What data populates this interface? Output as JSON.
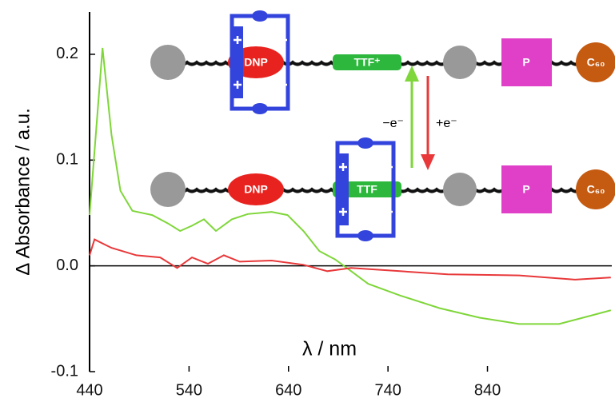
{
  "chart_data": {
    "type": "line",
    "xlabel": "λ / nm",
    "ylabel": "Δ Absorbance / a.u.",
    "xlim": [
      440,
      965
    ],
    "ylim": [
      -0.1,
      0.24
    ],
    "xticks": [
      440,
      540,
      640,
      740,
      840
    ],
    "yticks": [
      {
        "value": -0.1,
        "label": "-0.1"
      },
      {
        "value": 0,
        "label": "0.0"
      },
      0.1,
      0.2
    ],
    "series": [
      {
        "color": "#7fd63a",
        "x": [
          440,
          453,
          462,
          471,
          483,
          503,
          519,
          531,
          543,
          555,
          567,
          583,
          599,
          623,
          639,
          655,
          671,
          687,
          703,
          720,
          752,
          792,
          832,
          872,
          912,
          944,
          964
        ],
        "values": [
          0.048,
          0.206,
          0.124,
          0.071,
          0.052,
          0.048,
          0.04,
          0.033,
          0.038,
          0.044,
          0.033,
          0.044,
          0.049,
          0.051,
          0.048,
          0.033,
          0.014,
          0.006,
          -0.005,
          -0.017,
          -0.028,
          -0.04,
          -0.049,
          -0.055,
          -0.055,
          -0.047,
          -0.042
        ]
      },
      {
        "color": "#e8383a",
        "x": [
          440,
          445,
          462,
          487,
          511,
          528,
          543,
          559,
          575,
          591,
          623,
          655,
          679,
          703,
          752,
          800,
          872,
          928,
          964
        ],
        "values": [
          0.01,
          0.025,
          0.017,
          0.01,
          0.008,
          -0.002,
          0.008,
          0.002,
          0.01,
          0.004,
          0.005,
          0.001,
          -0.005,
          -0.002,
          -0.005,
          -0.008,
          -0.009,
          -0.013,
          -0.011
        ]
      }
    ]
  },
  "diagram": {
    "top": {
      "dnp": "DNP",
      "ttf": "TTF⁺",
      "p": "P",
      "c60": "C₆₀"
    },
    "bottom": {
      "dnp": "DNP",
      "ttf": "TTF",
      "p": "P",
      "c60": "C₆₀"
    },
    "arrows": {
      "oxidation": "−e⁻",
      "reduction": "+e⁻"
    }
  }
}
